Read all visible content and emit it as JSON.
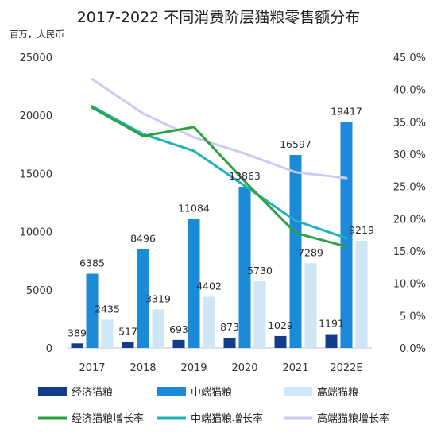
{
  "chart_data": {
    "type": "bar",
    "title": "2017-2022 不同消费阶层猫粮零售额分布",
    "ylabel": "百万，人民币",
    "categories": [
      "2017",
      "2018",
      "2019",
      "2020",
      "2021",
      "2022E"
    ],
    "ylim": [
      0,
      25000
    ],
    "y_ticks": [
      "0",
      "5000",
      "10000",
      "15000",
      "20000",
      "25000"
    ],
    "y2lim": [
      0,
      45
    ],
    "y2_ticks": [
      "0.0%",
      "5.0%",
      "10.0%",
      "15.0%",
      "20.0%",
      "25.0%",
      "30.0%",
      "35.0%",
      "40.0%",
      "45.0%"
    ],
    "grid": false,
    "legend_position": "bottom",
    "bar_series": [
      {
        "name": "经济猫粮",
        "color": "#123c8c",
        "values": [
          389,
          517,
          693,
          873,
          1029,
          1191
        ],
        "labels": [
          "389",
          "517",
          "693",
          "873",
          "1029",
          "1191"
        ]
      },
      {
        "name": "中端猫粮",
        "color": "#1b8ad8",
        "values": [
          6385,
          8496,
          11084,
          13863,
          16597,
          19417
        ],
        "labels": [
          "6385",
          "8496",
          "11084",
          "13863",
          "16597",
          "19417"
        ]
      },
      {
        "name": "高端猫粮",
        "color": "#cfe6f7",
        "values": [
          2435,
          3319,
          4402,
          5730,
          7289,
          9219
        ],
        "labels": [
          "2435",
          "3319",
          "4402",
          "5730",
          "7289",
          "9219"
        ]
      }
    ],
    "line_series": [
      {
        "name": "经济猫粮增长率",
        "color": "#2ea043",
        "values": [
          37.2,
          32.8,
          34.2,
          25.8,
          17.8,
          15.7
        ]
      },
      {
        "name": "中端猫粮增长率",
        "color": "#1fb2b8",
        "values": [
          37.4,
          33.1,
          30.5,
          25.1,
          19.7,
          17.0
        ]
      },
      {
        "name": "高端猫粮增长率",
        "color": "#c9ccf2",
        "values": [
          41.6,
          36.3,
          32.6,
          30.1,
          27.2,
          26.3
        ]
      }
    ]
  }
}
